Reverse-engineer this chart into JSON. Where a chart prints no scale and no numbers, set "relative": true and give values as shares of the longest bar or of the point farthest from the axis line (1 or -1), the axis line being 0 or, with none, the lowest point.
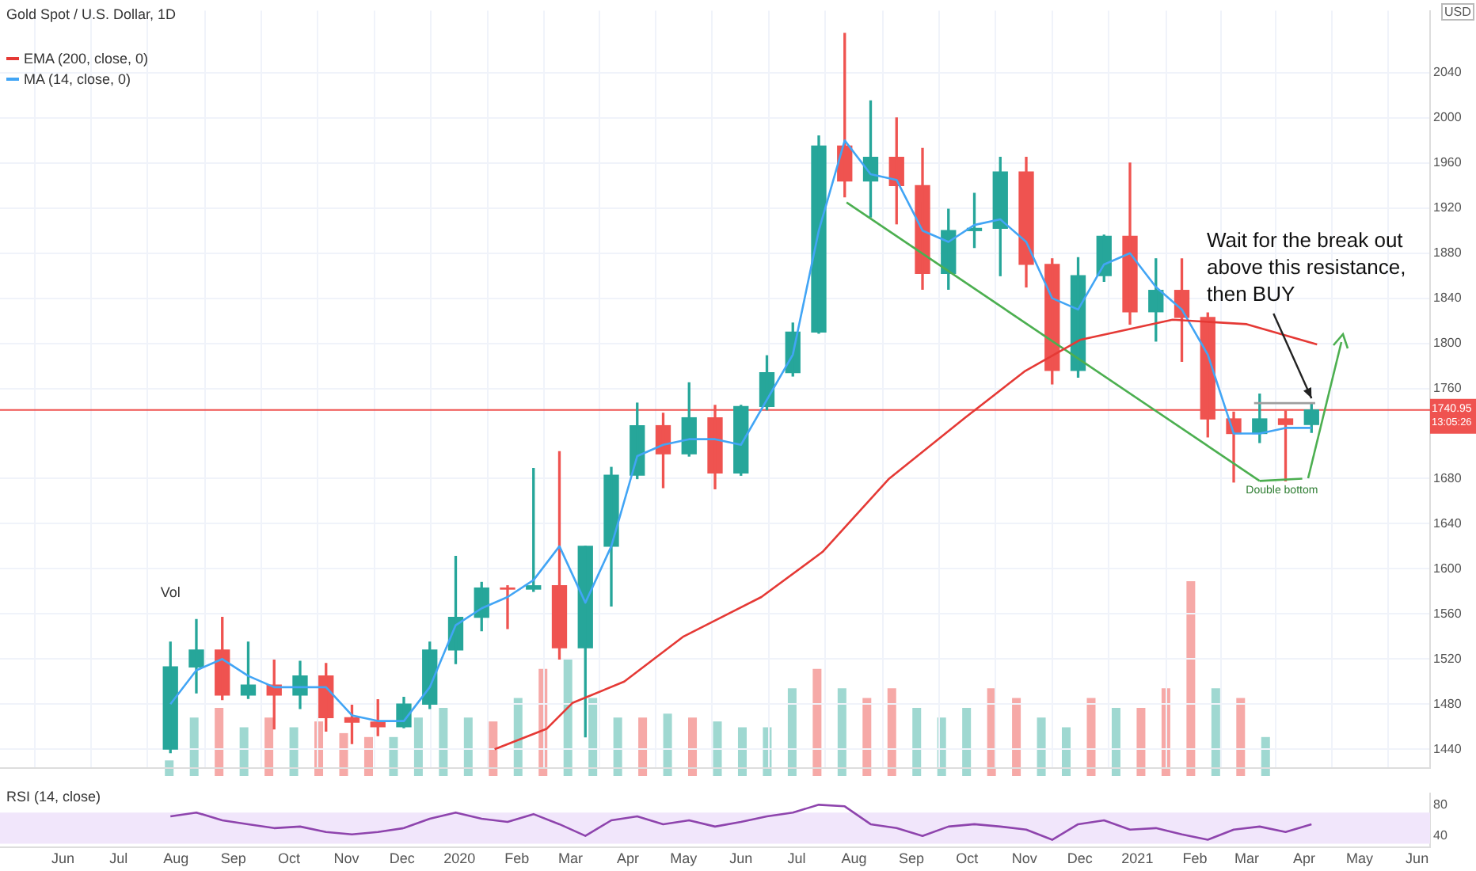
{
  "chart_data": [
    {
      "type": "candlestick",
      "title": "Gold Spot / U.S. Dollar, 1D",
      "ylabel": "USD",
      "x": [
        "2019-07-29",
        "2019-08-12",
        "2019-08-26",
        "2019-09-09",
        "2019-09-23",
        "2019-10-07",
        "2019-10-21",
        "2019-11-04",
        "2019-11-18",
        "2019-12-02",
        "2019-12-16",
        "2019-12-30",
        "2020-01-13",
        "2020-01-27",
        "2020-02-10",
        "2020-02-24",
        "2020-03-09",
        "2020-03-23",
        "2020-04-06",
        "2020-04-20",
        "2020-05-04",
        "2020-05-18",
        "2020-06-01",
        "2020-06-15",
        "2020-06-29",
        "2020-07-13",
        "2020-07-27",
        "2020-08-10",
        "2020-08-24",
        "2020-09-07",
        "2020-09-21",
        "2020-10-05",
        "2020-10-19",
        "2020-11-02",
        "2020-11-16",
        "2020-11-30",
        "2020-12-14",
        "2020-12-28",
        "2021-01-11",
        "2021-01-25",
        "2021-02-08",
        "2021-02-22",
        "2021-03-08",
        "2021-03-22",
        "2021-04-05"
      ],
      "ohlc": [
        [
          1440,
          1535,
          1437,
          1513
        ],
        [
          1513,
          1555,
          1490,
          1528
        ],
        [
          1528,
          1557,
          1484,
          1488
        ],
        [
          1488,
          1535,
          1485,
          1497
        ],
        [
          1497,
          1519,
          1458,
          1488
        ],
        [
          1488,
          1518,
          1476,
          1505
        ],
        [
          1505,
          1516,
          1456,
          1468
        ],
        [
          1468,
          1479,
          1445,
          1464
        ],
        [
          1464,
          1484,
          1452,
          1460
        ],
        [
          1460,
          1486,
          1459,
          1480
        ],
        [
          1480,
          1535,
          1476,
          1528
        ],
        [
          1528,
          1611,
          1516,
          1557
        ],
        [
          1557,
          1588,
          1545,
          1583
        ],
        [
          1583,
          1585,
          1547,
          1582
        ],
        [
          1582,
          1689,
          1580,
          1585
        ],
        [
          1585,
          1704,
          1520,
          1530
        ],
        [
          1530,
          1620,
          1451,
          1620
        ],
        [
          1620,
          1690,
          1567,
          1683
        ],
        [
          1683,
          1747,
          1680,
          1727
        ],
        [
          1727,
          1738,
          1672,
          1702
        ],
        [
          1702,
          1765,
          1700,
          1734
        ],
        [
          1734,
          1745,
          1671,
          1685
        ],
        [
          1685,
          1745,
          1683,
          1744
        ],
        [
          1744,
          1789,
          1741,
          1774
        ],
        [
          1774,
          1818,
          1771,
          1810
        ],
        [
          1810,
          1984,
          1809,
          1975
        ],
        [
          1975,
          2075,
          1930,
          1944
        ],
        [
          1944,
          2015,
          1912,
          1965
        ],
        [
          1965,
          2000,
          1906,
          1940
        ],
        [
          1940,
          1973,
          1848,
          1862
        ],
        [
          1862,
          1919,
          1848,
          1900
        ],
        [
          1900,
          1933,
          1885,
          1902
        ],
        [
          1902,
          1965,
          1860,
          1952
        ],
        [
          1952,
          1965,
          1850,
          1870
        ],
        [
          1870,
          1875,
          1764,
          1776
        ],
        [
          1776,
          1876,
          1770,
          1860
        ],
        [
          1860,
          1896,
          1855,
          1895
        ],
        [
          1895,
          1960,
          1817,
          1828
        ],
        [
          1828,
          1875,
          1802,
          1847
        ],
        [
          1847,
          1875,
          1784,
          1823
        ],
        [
          1823,
          1827,
          1717,
          1733
        ],
        [
          1733,
          1739,
          1677,
          1720
        ],
        [
          1720,
          1755,
          1712,
          1733
        ],
        [
          1733,
          1740,
          1678,
          1728
        ],
        [
          1728,
          1746,
          1721,
          1740.95
        ]
      ],
      "colors": [
        "#26a69a",
        "#26a69a",
        "#ef5350",
        "#26a69a",
        "#ef5350",
        "#26a69a",
        "#ef5350",
        "#ef5350",
        "#ef5350",
        "#26a69a",
        "#26a69a",
        "#26a69a",
        "#26a69a",
        "#ef5350",
        "#26a69a",
        "#ef5350",
        "#26a69a",
        "#26a69a",
        "#26a69a",
        "#ef5350",
        "#26a69a",
        "#ef5350",
        "#26a69a",
        "#26a69a",
        "#26a69a",
        "#26a69a",
        "#ef5350",
        "#26a69a",
        "#ef5350",
        "#ef5350",
        "#26a69a",
        "#26a69a",
        "#26a69a",
        "#ef5350",
        "#ef5350",
        "#26a69a",
        "#26a69a",
        "#ef5350",
        "#26a69a",
        "#ef5350",
        "#ef5350",
        "#ef5350",
        "#26a69a",
        "#ef5350",
        "#26a69a"
      ],
      "series": [
        {
          "type": "line",
          "name": "EMA (200, close, 0)",
          "color": "#e53935",
          "x": [
            "2020-01-20",
            "2020-02-17",
            "2020-03-02",
            "2020-03-30",
            "2020-05-01",
            "2020-06-12",
            "2020-07-15",
            "2020-08-20",
            "2020-09-30",
            "2020-11-01",
            "2020-12-01",
            "2021-01-20",
            "2021-03-01",
            "2021-04-08"
          ],
          "values": [
            1440,
            1458,
            1481,
            1500,
            1540,
            1575,
            1615,
            1680,
            1734,
            1775,
            1803,
            1821,
            1817,
            1799
          ]
        },
        {
          "type": "line",
          "name": "MA (14, close, 0)",
          "color": "#42a5f5",
          "values": [
            1480,
            1510,
            1520,
            1505,
            1495,
            1495,
            1495,
            1470,
            1465,
            1465,
            1495,
            1550,
            1565,
            1575,
            1590,
            1620,
            1570,
            1620,
            1700,
            1710,
            1715,
            1715,
            1710,
            1750,
            1790,
            1900,
            1980,
            1950,
            1945,
            1900,
            1890,
            1905,
            1910,
            1890,
            1840,
            1830,
            1870,
            1880,
            1850,
            1830,
            1790,
            1720,
            1720,
            1725,
            1725
          ]
        },
        {
          "type": "line",
          "color": "#4caf50",
          "x": [
            "2020-07-28",
            "2021-03-08"
          ],
          "values": [
            1925,
            1678
          ]
        },
        {
          "type": "line",
          "color": "#4caf50",
          "x": [
            "2021-03-08",
            "2021-03-31"
          ],
          "values": [
            1678,
            1680
          ]
        },
        {
          "type": "line",
          "color": "#9e9e9e",
          "x": [
            "2021-03-05",
            "2021-04-07"
          ],
          "values": [
            1747,
            1747
          ]
        }
      ],
      "ref_lines": [
        {
          "axis": "y",
          "value": 1740.95,
          "label": "1740.95",
          "color": "#ef5350"
        }
      ],
      "annotations": [
        {
          "text": "Wait for the break out above this resistance, then BUY",
          "x": "2021-04-05",
          "y": 1747
        },
        "13:05:26",
        {
          "text": "Double bottom",
          "x": "2021-03-20",
          "y": 1683
        }
      ],
      "xlim": [
        "2019-04-28",
        "2021-06-08"
      ],
      "ylim": [
        1423,
        2095
      ],
      "xticks": [
        {
          "value": "2019-06-01",
          "label": null
        },
        {
          "value": "2019-07-01",
          "label": null
        },
        {
          "value": "2019-08-01",
          "label": null
        },
        {
          "value": "2019-09-01",
          "label": null
        },
        {
          "value": "2019-10-01",
          "label": null
        },
        {
          "value": "2019-11-01",
          "label": null
        },
        {
          "value": "2019-12-01",
          "label": null
        },
        {
          "value": "2020-01-01",
          "label": null
        },
        {
          "value": "2020-02-01",
          "label": null
        },
        {
          "value": "2020-03-01",
          "label": null
        },
        {
          "value": "2020-04-01",
          "label": null
        },
        {
          "value": "2020-05-01",
          "label": null
        },
        {
          "value": "2020-06-01",
          "label": null
        },
        {
          "value": "2020-07-01",
          "label": null
        },
        {
          "value": "2020-08-01",
          "label": null
        },
        {
          "value": "2020-09-01",
          "label": null
        },
        {
          "value": "2020-10-01",
          "label": null
        },
        {
          "value": "2020-11-01",
          "label": null
        },
        {
          "value": "2020-12-01",
          "label": null
        },
        {
          "value": "2021-01-01",
          "label": null
        },
        {
          "value": "2021-02-01",
          "label": null
        },
        {
          "value": "2021-03-01",
          "label": null
        },
        {
          "value": "2021-04-01",
          "label": null
        },
        {
          "value": "2021-05-01",
          "label": null
        },
        {
          "value": "2021-06-01",
          "label": null
        }
      ],
      "yticks": [
        1440,
        1480,
        1520,
        1560,
        1600,
        1640,
        1680,
        1760,
        1800,
        1840,
        1880,
        1920,
        1960,
        2000,
        2040
      ],
      "tick_labels": "y",
      "grid": true,
      "legend": "top left",
      "marker": "none"
    },
    {
      "type": "bar",
      "title": "Vol",
      "relative": true,
      "categories": [
        null,
        null,
        null,
        null,
        null,
        null,
        null,
        null,
        null,
        null,
        null,
        null,
        null,
        null,
        null,
        null,
        null,
        null,
        null,
        null,
        null,
        null,
        null,
        null,
        null,
        null,
        null,
        null,
        null,
        null,
        null,
        null,
        null,
        null,
        null,
        null,
        null,
        null,
        null,
        null,
        null,
        null,
        null,
        null,
        null
      ],
      "values": [
        0.08,
        0.3,
        0.35,
        0.25,
        0.3,
        0.25,
        0.28,
        0.22,
        0.2,
        0.2,
        0.3,
        0.35,
        0.3,
        0.28,
        0.4,
        0.55,
        0.6,
        0.4,
        0.3,
        0.3,
        0.32,
        0.3,
        0.28,
        0.25,
        0.25,
        0.45,
        0.55,
        0.45,
        0.4,
        0.45,
        0.35,
        0.3,
        0.35,
        0.45,
        0.4,
        0.3,
        0.25,
        0.4,
        0.35,
        0.35,
        0.45,
        1,
        0.45,
        0.4,
        0.2
      ],
      "colors": [
        "#9fd8d1",
        "#9fd8d1",
        "#f6a9a7",
        "#9fd8d1",
        "#f6a9a7",
        "#9fd8d1",
        "#f6a9a7",
        "#f6a9a7",
        "#f6a9a7",
        "#9fd8d1",
        "#9fd8d1",
        "#9fd8d1",
        "#9fd8d1",
        "#f6a9a7",
        "#9fd8d1",
        "#f6a9a7",
        "#9fd8d1",
        "#9fd8d1",
        "#9fd8d1",
        "#f6a9a7",
        "#9fd8d1",
        "#f6a9a7",
        "#9fd8d1",
        "#9fd8d1",
        "#9fd8d1",
        "#9fd8d1",
        "#f6a9a7",
        "#9fd8d1",
        "#f6a9a7",
        "#f6a9a7",
        "#9fd8d1",
        "#9fd8d1",
        "#9fd8d1",
        "#f6a9a7",
        "#f6a9a7",
        "#9fd8d1",
        "#9fd8d1",
        "#f6a9a7",
        "#9fd8d1",
        "#f6a9a7",
        "#f6a9a7",
        "#f6a9a7",
        "#9fd8d1",
        "#f6a9a7",
        "#9fd8d1"
      ],
      "tick_labels": false
    },
    {
      "type": "line",
      "title": "RSI (14, close)",
      "x": [
        "2019-07-29",
        "2019-08-12",
        "2019-08-26",
        "2019-09-09",
        "2019-09-23",
        "2019-10-07",
        "2019-10-21",
        "2019-11-04",
        "2019-11-18",
        "2019-12-02",
        "2019-12-16",
        "2019-12-30",
        "2020-01-13",
        "2020-01-27",
        "2020-02-10",
        "2020-02-24",
        "2020-03-09",
        "2020-03-23",
        "2020-04-06",
        "2020-04-20",
        "2020-05-04",
        "2020-05-18",
        "2020-06-01",
        "2020-06-15",
        "2020-06-29",
        "2020-07-13",
        "2020-07-27",
        "2020-08-10",
        "2020-08-24",
        "2020-09-07",
        "2020-09-21",
        "2020-10-05",
        "2020-10-19",
        "2020-11-02",
        "2020-11-16",
        "2020-11-30",
        "2020-12-14",
        "2020-12-28",
        "2021-01-11",
        "2021-01-25",
        "2021-02-08",
        "2021-02-22",
        "2021-03-08",
        "2021-03-22",
        "2021-04-05"
      ],
      "series": [
        {
          "color": "#8e44ad",
          "values": [
            65,
            70,
            60,
            55,
            50,
            52,
            45,
            42,
            45,
            50,
            62,
            70,
            62,
            58,
            68,
            55,
            40,
            60,
            65,
            55,
            60,
            52,
            58,
            65,
            70,
            80,
            78,
            55,
            50,
            40,
            52,
            55,
            52,
            48,
            35,
            55,
            60,
            48,
            50,
            42,
            35,
            48,
            52,
            45,
            55
          ]
        }
      ],
      "bands": [
        {
          "axis": "y",
          "from": 30,
          "to": 70,
          "color": "#f1e6fb"
        }
      ],
      "xlim": [
        "2019-04-28",
        "2021-06-08"
      ],
      "ylim": [
        25,
        95
      ],
      "yticks": [
        40,
        80
      ],
      "xticks": [
        {
          "value": "2019-06-01",
          "label": "Jun"
        },
        {
          "value": "2019-07-01",
          "label": "Jul"
        },
        {
          "value": "2019-08-01",
          "label": "Aug"
        },
        {
          "value": "2019-09-01",
          "label": "Sep"
        },
        {
          "value": "2019-10-01",
          "label": "Oct"
        },
        {
          "value": "2019-11-01",
          "label": "Nov"
        },
        {
          "value": "2019-12-01",
          "label": "Dec"
        },
        {
          "value": "2020-01-01",
          "label": "2020"
        },
        {
          "value": "2020-02-01",
          "label": "Feb"
        },
        {
          "value": "2020-03-01",
          "label": "Mar"
        },
        {
          "value": "2020-04-01",
          "label": "Apr"
        },
        {
          "value": "2020-05-01",
          "label": "May"
        },
        {
          "value": "2020-06-01",
          "label": "Jun"
        },
        {
          "value": "2020-07-01",
          "label": "Jul"
        },
        {
          "value": "2020-08-01",
          "label": "Aug"
        },
        {
          "value": "2020-09-01",
          "label": "Sep"
        },
        {
          "value": "2020-10-01",
          "label": "Oct"
        },
        {
          "value": "2020-11-01",
          "label": "Nov"
        },
        {
          "value": "2020-12-01",
          "label": "Dec"
        },
        {
          "value": "2021-01-01",
          "label": "2021"
        },
        {
          "value": "2021-02-01",
          "label": "Feb"
        },
        {
          "value": "2021-03-01",
          "label": "Mar"
        },
        {
          "value": "2021-04-01",
          "label": "Apr"
        },
        {
          "value": "2021-05-01",
          "label": "May"
        },
        {
          "value": "2021-06-01",
          "label": "Jun"
        }
      ],
      "marker": "none"
    }
  ]
}
